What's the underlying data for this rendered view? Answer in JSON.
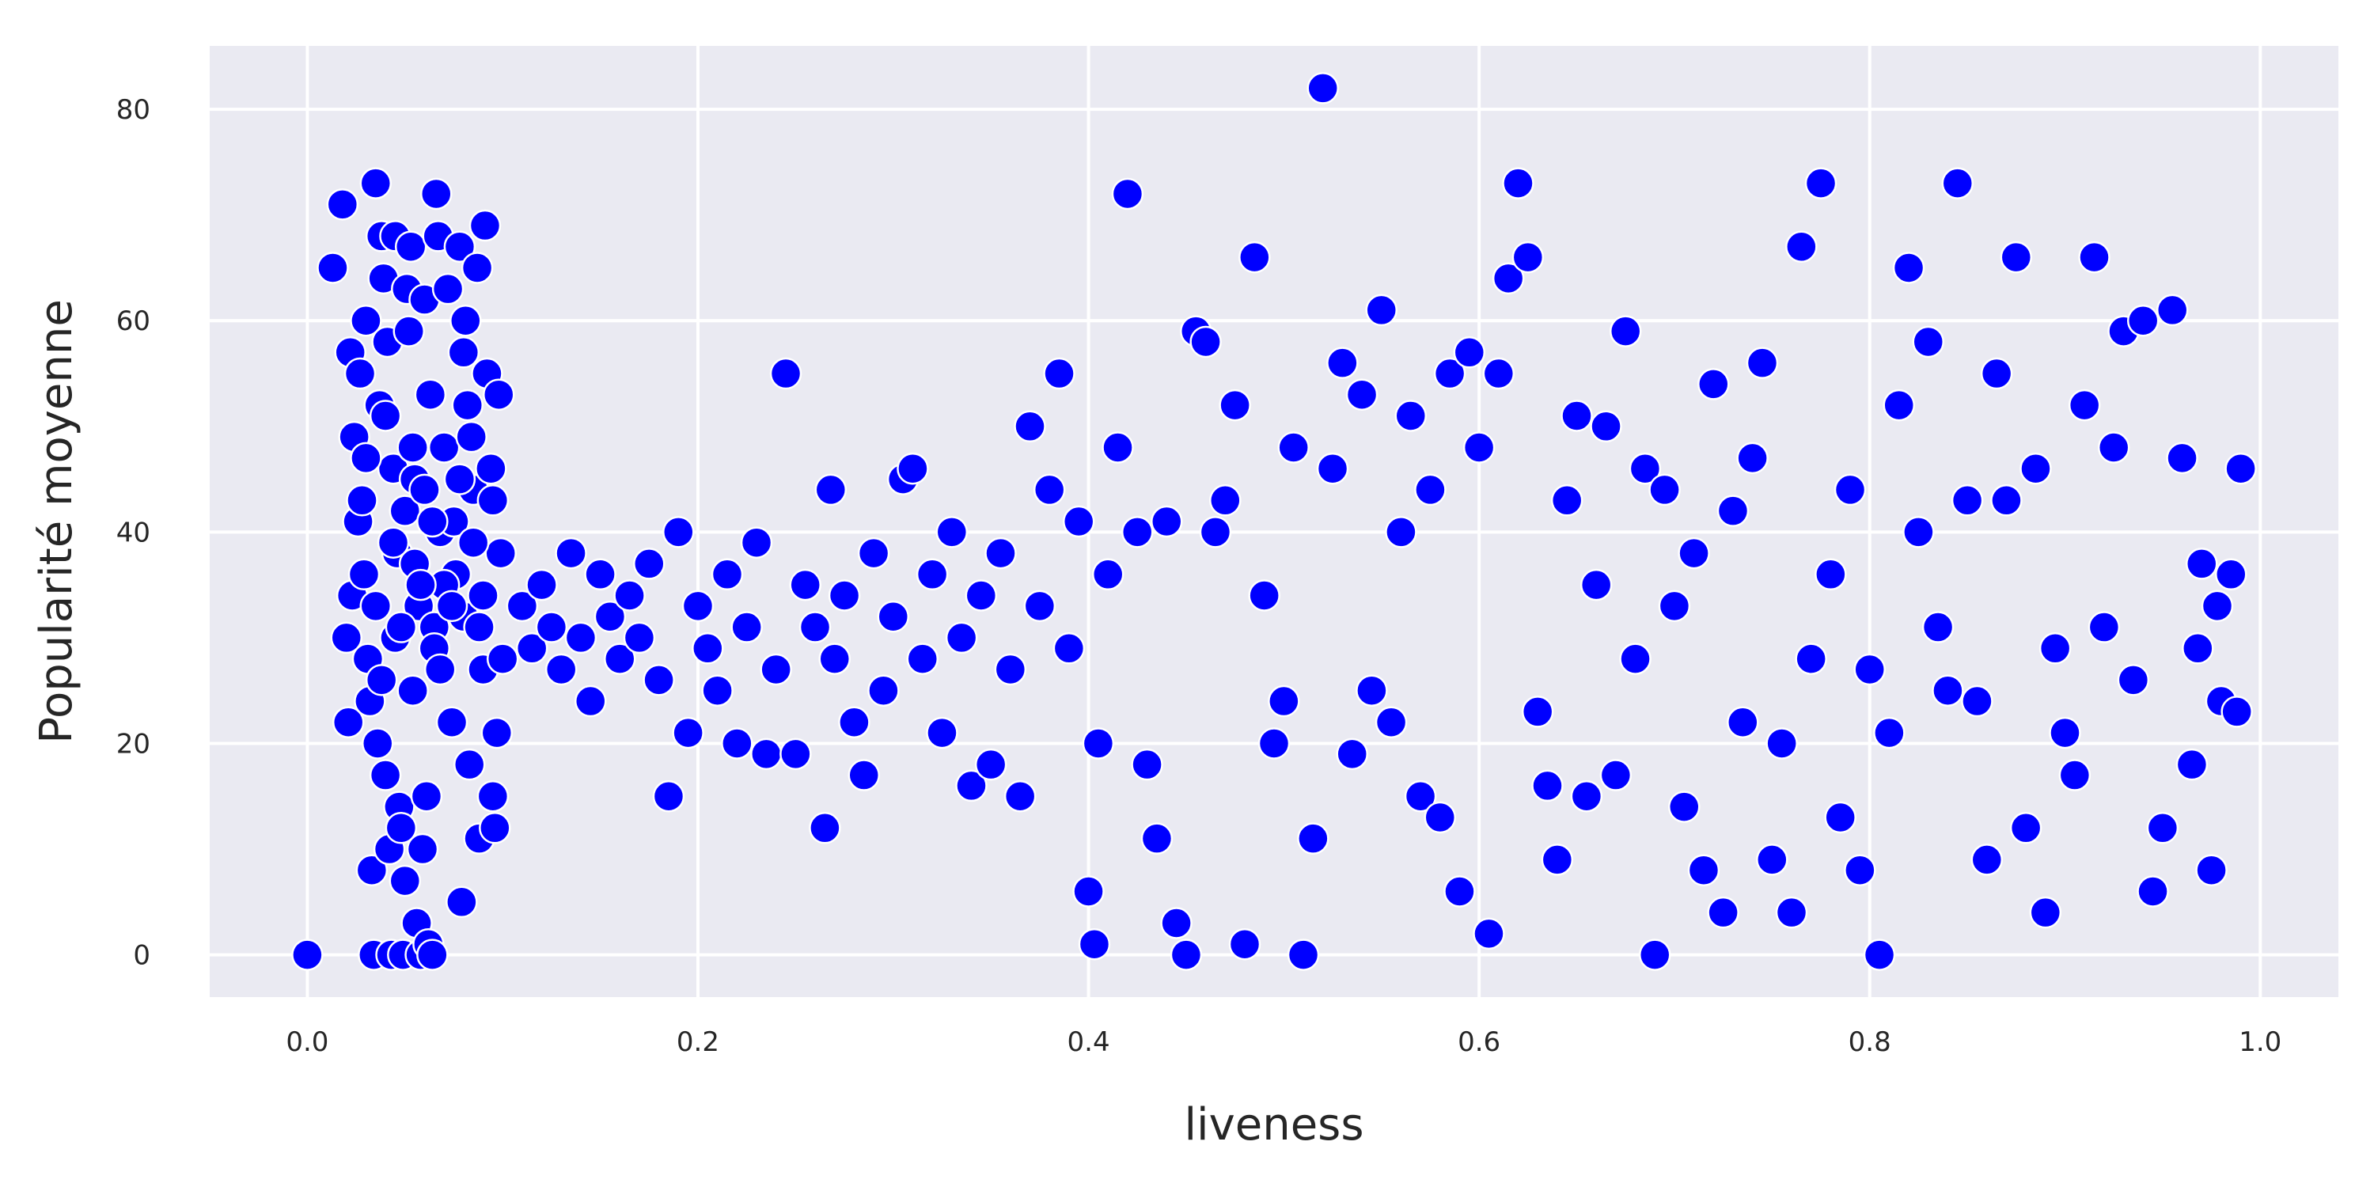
{
  "chart_data": {
    "type": "scatter",
    "title": "",
    "xlabel": "liveness",
    "ylabel": "Popularité moyenne",
    "xlim": [
      -0.05,
      1.04
    ],
    "ylim": [
      -4,
      86
    ],
    "xticks": [
      0.0,
      0.2,
      0.4,
      0.6,
      0.8,
      1.0
    ],
    "xtick_labels": [
      "0.0",
      "0.2",
      "0.4",
      "0.6",
      "0.8",
      "1.0"
    ],
    "yticks": [
      0,
      20,
      40,
      60,
      80
    ],
    "ytick_labels": [
      "0",
      "20",
      "40",
      "60",
      "80"
    ],
    "grid": true,
    "legend": "none",
    "colors": {
      "background": "#eaeaf2",
      "grid": "#ffffff",
      "marker": "#0000ff",
      "marker_edge": "#ffffff"
    },
    "series": [
      {
        "points": [
          [
            0.0,
            0
          ],
          [
            0.013,
            65
          ],
          [
            0.018,
            71
          ],
          [
            0.02,
            30
          ],
          [
            0.021,
            22
          ],
          [
            0.022,
            57
          ],
          [
            0.023,
            34
          ],
          [
            0.024,
            49
          ],
          [
            0.026,
            41
          ],
          [
            0.027,
            55
          ],
          [
            0.028,
            43
          ],
          [
            0.029,
            36
          ],
          [
            0.03,
            60
          ],
          [
            0.031,
            28
          ],
          [
            0.032,
            24
          ],
          [
            0.033,
            8
          ],
          [
            0.034,
            0
          ],
          [
            0.035,
            73
          ],
          [
            0.036,
            20
          ],
          [
            0.037,
            52
          ],
          [
            0.038,
            68
          ],
          [
            0.039,
            64
          ],
          [
            0.04,
            17
          ],
          [
            0.041,
            58
          ],
          [
            0.042,
            10
          ],
          [
            0.043,
            0
          ],
          [
            0.044,
            46
          ],
          [
            0.045,
            68
          ],
          [
            0.046,
            38
          ],
          [
            0.047,
            14
          ],
          [
            0.048,
            12
          ],
          [
            0.049,
            0
          ],
          [
            0.05,
            7
          ],
          [
            0.051,
            63
          ],
          [
            0.052,
            59
          ],
          [
            0.053,
            67
          ],
          [
            0.054,
            25
          ],
          [
            0.055,
            45
          ],
          [
            0.056,
            3
          ],
          [
            0.057,
            33
          ],
          [
            0.058,
            0
          ],
          [
            0.059,
            10
          ],
          [
            0.06,
            62
          ],
          [
            0.061,
            15
          ],
          [
            0.062,
            1
          ],
          [
            0.063,
            53
          ],
          [
            0.064,
            0
          ],
          [
            0.065,
            31
          ],
          [
            0.066,
            72
          ],
          [
            0.067,
            68
          ],
          [
            0.068,
            40
          ],
          [
            0.07,
            48
          ],
          [
            0.072,
            63
          ],
          [
            0.074,
            22
          ],
          [
            0.076,
            36
          ],
          [
            0.078,
            67
          ],
          [
            0.079,
            5
          ],
          [
            0.08,
            57
          ],
          [
            0.081,
            60
          ],
          [
            0.082,
            52
          ],
          [
            0.083,
            18
          ],
          [
            0.085,
            44
          ],
          [
            0.087,
            65
          ],
          [
            0.088,
            11
          ],
          [
            0.09,
            27
          ],
          [
            0.091,
            69
          ],
          [
            0.092,
            55
          ],
          [
            0.094,
            46
          ],
          [
            0.095,
            15
          ],
          [
            0.096,
            12
          ],
          [
            0.097,
            21
          ],
          [
            0.098,
            53
          ],
          [
            0.099,
            38
          ],
          [
            0.1,
            28
          ],
          [
            0.03,
            47
          ],
          [
            0.035,
            33
          ],
          [
            0.04,
            51
          ],
          [
            0.045,
            30
          ],
          [
            0.05,
            42
          ],
          [
            0.055,
            37
          ],
          [
            0.06,
            44
          ],
          [
            0.065,
            29
          ],
          [
            0.07,
            35
          ],
          [
            0.075,
            41
          ],
          [
            0.08,
            32
          ],
          [
            0.085,
            39
          ],
          [
            0.09,
            34
          ],
          [
            0.095,
            43
          ],
          [
            0.038,
            26
          ],
          [
            0.048,
            31
          ],
          [
            0.058,
            35
          ],
          [
            0.068,
            27
          ],
          [
            0.078,
            45
          ],
          [
            0.088,
            31
          ],
          [
            0.044,
            39
          ],
          [
            0.054,
            48
          ],
          [
            0.064,
            41
          ],
          [
            0.074,
            33
          ],
          [
            0.084,
            49
          ],
          [
            0.11,
            33
          ],
          [
            0.115,
            29
          ],
          [
            0.12,
            35
          ],
          [
            0.125,
            31
          ],
          [
            0.13,
            27
          ],
          [
            0.135,
            38
          ],
          [
            0.14,
            30
          ],
          [
            0.145,
            24
          ],
          [
            0.15,
            36
          ],
          [
            0.155,
            32
          ],
          [
            0.16,
            28
          ],
          [
            0.165,
            34
          ],
          [
            0.17,
            30
          ],
          [
            0.175,
            37
          ],
          [
            0.18,
            26
          ],
          [
            0.185,
            15
          ],
          [
            0.19,
            40
          ],
          [
            0.195,
            21
          ],
          [
            0.2,
            33
          ],
          [
            0.205,
            29
          ],
          [
            0.21,
            25
          ],
          [
            0.215,
            36
          ],
          [
            0.22,
            20
          ],
          [
            0.225,
            31
          ],
          [
            0.23,
            39
          ],
          [
            0.235,
            19
          ],
          [
            0.24,
            27
          ],
          [
            0.245,
            55
          ],
          [
            0.25,
            19
          ],
          [
            0.255,
            35
          ],
          [
            0.26,
            31
          ],
          [
            0.265,
            12
          ],
          [
            0.268,
            44
          ],
          [
            0.27,
            28
          ],
          [
            0.275,
            34
          ],
          [
            0.28,
            22
          ],
          [
            0.285,
            17
          ],
          [
            0.29,
            38
          ],
          [
            0.295,
            25
          ],
          [
            0.3,
            32
          ],
          [
            0.305,
            45
          ],
          [
            0.31,
            46
          ],
          [
            0.315,
            28
          ],
          [
            0.32,
            36
          ],
          [
            0.325,
            21
          ],
          [
            0.33,
            40
          ],
          [
            0.335,
            30
          ],
          [
            0.34,
            16
          ],
          [
            0.345,
            34
          ],
          [
            0.35,
            18
          ],
          [
            0.355,
            38
          ],
          [
            0.36,
            27
          ],
          [
            0.365,
            15
          ],
          [
            0.37,
            50
          ],
          [
            0.375,
            33
          ],
          [
            0.38,
            44
          ],
          [
            0.385,
            55
          ],
          [
            0.39,
            29
          ],
          [
            0.395,
            41
          ],
          [
            0.4,
            6
          ],
          [
            0.403,
            1
          ],
          [
            0.405,
            20
          ],
          [
            0.41,
            36
          ],
          [
            0.415,
            48
          ],
          [
            0.42,
            72
          ],
          [
            0.425,
            40
          ],
          [
            0.43,
            18
          ],
          [
            0.435,
            11
          ],
          [
            0.44,
            41
          ],
          [
            0.445,
            3
          ],
          [
            0.45,
            0
          ],
          [
            0.455,
            59
          ],
          [
            0.46,
            58
          ],
          [
            0.465,
            40
          ],
          [
            0.47,
            43
          ],
          [
            0.475,
            52
          ],
          [
            0.48,
            1
          ],
          [
            0.485,
            66
          ],
          [
            0.49,
            34
          ],
          [
            0.495,
            20
          ],
          [
            0.5,
            24
          ],
          [
            0.505,
            48
          ],
          [
            0.51,
            0
          ],
          [
            0.515,
            11
          ],
          [
            0.52,
            82
          ],
          [
            0.525,
            46
          ],
          [
            0.53,
            56
          ],
          [
            0.535,
            19
          ],
          [
            0.54,
            53
          ],
          [
            0.545,
            25
          ],
          [
            0.55,
            61
          ],
          [
            0.555,
            22
          ],
          [
            0.56,
            40
          ],
          [
            0.565,
            51
          ],
          [
            0.57,
            15
          ],
          [
            0.575,
            44
          ],
          [
            0.58,
            13
          ],
          [
            0.585,
            55
          ],
          [
            0.59,
            6
          ],
          [
            0.595,
            57
          ],
          [
            0.6,
            48
          ],
          [
            0.605,
            2
          ],
          [
            0.61,
            55
          ],
          [
            0.615,
            64
          ],
          [
            0.62,
            73
          ],
          [
            0.625,
            66
          ],
          [
            0.63,
            23
          ],
          [
            0.635,
            16
          ],
          [
            0.64,
            9
          ],
          [
            0.645,
            43
          ],
          [
            0.65,
            51
          ],
          [
            0.655,
            15
          ],
          [
            0.66,
            35
          ],
          [
            0.665,
            50
          ],
          [
            0.67,
            17
          ],
          [
            0.675,
            59
          ],
          [
            0.68,
            28
          ],
          [
            0.685,
            46
          ],
          [
            0.69,
            0
          ],
          [
            0.695,
            44
          ],
          [
            0.7,
            33
          ],
          [
            0.705,
            14
          ],
          [
            0.71,
            38
          ],
          [
            0.715,
            8
          ],
          [
            0.72,
            54
          ],
          [
            0.725,
            4
          ],
          [
            0.73,
            42
          ],
          [
            0.735,
            22
          ],
          [
            0.74,
            47
          ],
          [
            0.745,
            56
          ],
          [
            0.75,
            9
          ],
          [
            0.755,
            20
          ],
          [
            0.76,
            4
          ],
          [
            0.765,
            67
          ],
          [
            0.77,
            28
          ],
          [
            0.775,
            73
          ],
          [
            0.78,
            36
          ],
          [
            0.785,
            13
          ],
          [
            0.79,
            44
          ],
          [
            0.795,
            8
          ],
          [
            0.8,
            27
          ],
          [
            0.805,
            0
          ],
          [
            0.81,
            21
          ],
          [
            0.815,
            52
          ],
          [
            0.82,
            65
          ],
          [
            0.825,
            40
          ],
          [
            0.83,
            58
          ],
          [
            0.835,
            31
          ],
          [
            0.84,
            25
          ],
          [
            0.845,
            73
          ],
          [
            0.85,
            43
          ],
          [
            0.855,
            24
          ],
          [
            0.86,
            9
          ],
          [
            0.865,
            55
          ],
          [
            0.87,
            43
          ],
          [
            0.875,
            66
          ],
          [
            0.88,
            12
          ],
          [
            0.885,
            46
          ],
          [
            0.89,
            4
          ],
          [
            0.895,
            29
          ],
          [
            0.9,
            21
          ],
          [
            0.905,
            17
          ],
          [
            0.91,
            52
          ],
          [
            0.915,
            66
          ],
          [
            0.92,
            31
          ],
          [
            0.925,
            48
          ],
          [
            0.93,
            59
          ],
          [
            0.935,
            26
          ],
          [
            0.94,
            60
          ],
          [
            0.945,
            6
          ],
          [
            0.95,
            12
          ],
          [
            0.955,
            61
          ],
          [
            0.96,
            47
          ],
          [
            0.965,
            18
          ],
          [
            0.97,
            37
          ],
          [
            0.975,
            8
          ],
          [
            0.98,
            24
          ],
          [
            0.985,
            36
          ],
          [
            0.99,
            46
          ],
          [
            0.988,
            23
          ],
          [
            0.978,
            33
          ],
          [
            0.968,
            29
          ]
        ]
      }
    ]
  }
}
